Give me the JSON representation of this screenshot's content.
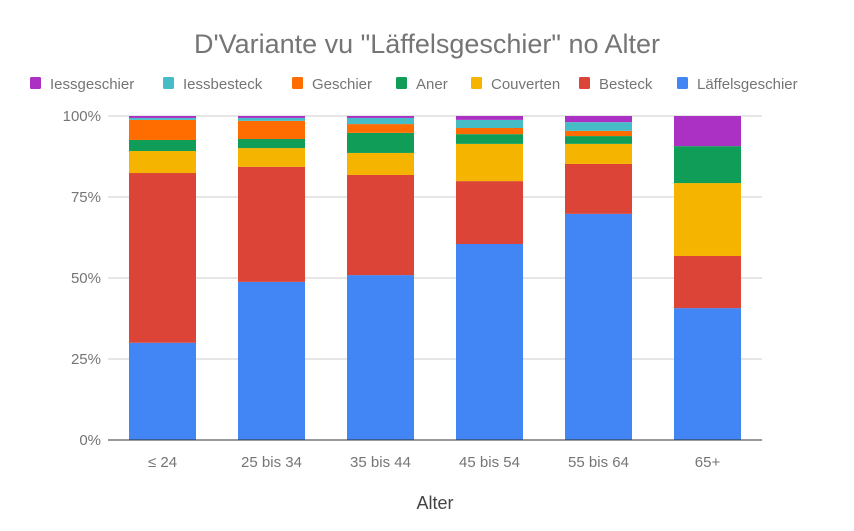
{
  "chart_data": {
    "type": "bar",
    "stacked": true,
    "normalized": true,
    "title": "D'Variante vu \"Läffelsgeschier\" no Alter",
    "xlabel": "Alter",
    "ylabel": "",
    "ylim": [
      0,
      100
    ],
    "yticks": [
      "0%",
      "25%",
      "50%",
      "75%",
      "100%"
    ],
    "ytick_values": [
      0,
      25,
      50,
      75,
      100
    ],
    "grid": true,
    "legend_position": "top",
    "categories": [
      "≤ 24",
      "25 bis 34",
      "35 bis 44",
      "45 bis 54",
      "55 bis 64",
      "65+"
    ],
    "legend_order": [
      "Iessgeschier",
      "Iessbesteck",
      "Geschier",
      "Aner",
      "Couverten",
      "Besteck",
      "Läffelsgeschier"
    ],
    "series": [
      {
        "name": "Läffelsgeschier",
        "color": "#4285f4",
        "values": [
          30.0,
          48.8,
          50.9,
          60.5,
          69.8,
          40.7
        ]
      },
      {
        "name": "Besteck",
        "color": "#db4437",
        "values": [
          52.4,
          35.5,
          30.9,
          19.4,
          15.4,
          16.1
        ]
      },
      {
        "name": "Couverten",
        "color": "#f4b400",
        "values": [
          6.8,
          5.8,
          6.8,
          11.5,
          6.2,
          22.5
        ]
      },
      {
        "name": "Aner",
        "color": "#0f9d58",
        "values": [
          3.4,
          2.8,
          6.2,
          3.0,
          2.4,
          11.4
        ]
      },
      {
        "name": "Geschier",
        "color": "#ff6d01",
        "values": [
          6.2,
          5.6,
          2.7,
          1.9,
          1.6,
          0.0
        ]
      },
      {
        "name": "Iessbesteck",
        "color": "#46bdc6",
        "values": [
          0.6,
          0.9,
          1.9,
          2.5,
          2.7,
          0.0
        ]
      },
      {
        "name": "Iessgeschier",
        "color": "#ab30c4",
        "values": [
          0.6,
          0.6,
          0.6,
          1.2,
          1.9,
          9.3
        ]
      }
    ]
  }
}
